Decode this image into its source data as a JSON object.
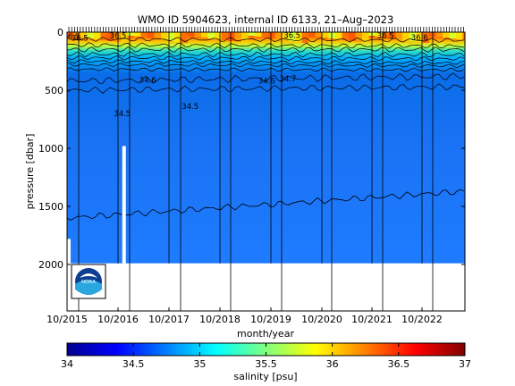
{
  "chart_data": {
    "type": "heatmap",
    "title": "WMO ID 5904623, internal ID 6133, 21–Aug–2023",
    "xlabel": "month/year",
    "ylabel": "pressure [dbar]",
    "x_ticks": [
      "10/2015",
      "10/2016",
      "10/2017",
      "10/2018",
      "10/2019",
      "10/2020",
      "10/2021",
      "10/2022"
    ],
    "y_ticks": [
      0,
      500,
      1000,
      1500,
      2000
    ],
    "ylim": [
      2400,
      0
    ],
    "y_reversed": true,
    "colorbar": {
      "label": "salinity [psu]",
      "range": [
        34,
        37
      ],
      "ticks": [
        34,
        34.5,
        35,
        35.5,
        36,
        36.5,
        37
      ],
      "tick_labels": [
        "34",
        "34.5",
        "35",
        "35.5",
        "36",
        "36.5",
        "37"
      ],
      "colormap": "jet"
    },
    "contour_labels": [
      {
        "text": "36.5",
        "date": "2015-11",
        "pressure": 40
      },
      {
        "text": "36.5",
        "date": "2016-01",
        "pressure": 50
      },
      {
        "text": "36.5",
        "date": "2016-10",
        "pressure": 30
      },
      {
        "text": "34.6",
        "date": "2017-05",
        "pressure": 410
      },
      {
        "text": "34.5",
        "date": "2016-11",
        "pressure": 700
      },
      {
        "text": "34.5",
        "date": "2018-03",
        "pressure": 640
      },
      {
        "text": "34.6",
        "date": "2019-09",
        "pressure": 420
      },
      {
        "text": "34.7",
        "date": "2020-02",
        "pressure": 400
      },
      {
        "text": "36.5",
        "date": "2020-03",
        "pressure": 25
      },
      {
        "text": "36.5",
        "date": "2022-01",
        "pressure": 30
      },
      {
        "text": "36.6",
        "date": "2022-09",
        "pressure": 45
      }
    ],
    "profile_max_pressure": 1990,
    "gap": {
      "date": "2016-11",
      "pressure_top": 980
    },
    "grid": false
  },
  "logo": {
    "text": "NOAA"
  },
  "colors": {
    "surface_max": "#d02020",
    "deep_water": "#1f6fff",
    "background": "#ffffff"
  }
}
